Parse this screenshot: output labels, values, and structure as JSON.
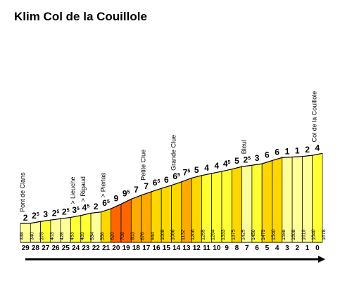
{
  "title": "Klim Col de la Couillole",
  "colors": {
    "lt3": "#ffff99",
    "lt5": "#ffff33",
    "lt7": "#ffd700",
    "lt9": "#ffaa00",
    "ge9": "#ff6600",
    "stroke": "#000000",
    "arrow": "#000000"
  },
  "chart_data": {
    "type": "area",
    "title": "Klim Col de la Couillole",
    "x_axis": {
      "label": "",
      "direction": "descending",
      "ticks": [
        29,
        28,
        27,
        26,
        25,
        24,
        23,
        22,
        21,
        20,
        19,
        18,
        17,
        16,
        15,
        14,
        13,
        12,
        11,
        10,
        9,
        8,
        7,
        6,
        5,
        4,
        3,
        2,
        1,
        0
      ]
    },
    "segments": [
      {
        "km_from": 29,
        "km_to": 28,
        "elevation_start": 338,
        "grade": "2"
      },
      {
        "km_from": 28,
        "km_to": 27,
        "elevation_start": 340,
        "grade": "2.5"
      },
      {
        "km_from": 27,
        "km_to": 26,
        "elevation_start": 375,
        "grade": "3"
      },
      {
        "km_from": 26,
        "km_to": 25,
        "elevation_start": 403,
        "grade": "2.5"
      },
      {
        "km_from": 25,
        "km_to": 24,
        "elevation_start": 428,
        "grade": "2.5"
      },
      {
        "km_from": 24,
        "km_to": 23,
        "elevation_start": 453,
        "grade": "3.5"
      },
      {
        "km_from": 23,
        "km_to": 22,
        "elevation_start": 489,
        "grade": "4.5"
      },
      {
        "km_from": 22,
        "km_to": 21,
        "elevation_start": 534,
        "grade": "2"
      },
      {
        "km_from": 21,
        "km_to": 20,
        "elevation_start": 556,
        "grade": "6.5"
      },
      {
        "km_from": 20,
        "km_to": 19,
        "elevation_start": 620,
        "grade": "9"
      },
      {
        "km_from": 19,
        "km_to": 18,
        "elevation_start": 708,
        "grade": "9.5"
      },
      {
        "km_from": 18,
        "km_to": 17,
        "elevation_start": 803,
        "grade": "7"
      },
      {
        "km_from": 17,
        "km_to": 16,
        "elevation_start": 876,
        "grade": "7"
      },
      {
        "km_from": 16,
        "km_to": 15,
        "elevation_start": 944,
        "grade": "6.5"
      },
      {
        "km_from": 15,
        "km_to": 14,
        "elevation_start": 1008,
        "grade": "6"
      },
      {
        "km_from": 14,
        "km_to": 13,
        "elevation_start": 1066,
        "grade": "6.5"
      },
      {
        "km_from": 13,
        "km_to": 12,
        "elevation_start": 1132,
        "grade": "7.5"
      },
      {
        "km_from": 12,
        "km_to": 11,
        "elevation_start": 1206,
        "grade": "5"
      },
      {
        "km_from": 11,
        "km_to": 10,
        "elevation_start": 1255,
        "grade": "4"
      },
      {
        "km_from": 10,
        "km_to": 9,
        "elevation_start": 1294,
        "grade": "4"
      },
      {
        "km_from": 9,
        "km_to": 8,
        "elevation_start": 1333,
        "grade": "4.5"
      },
      {
        "km_from": 8,
        "km_to": 7,
        "elevation_start": 1375,
        "grade": "5"
      },
      {
        "km_from": 7,
        "km_to": 6,
        "elevation_start": 1425,
        "grade": "2.5"
      },
      {
        "km_from": 6,
        "km_to": 5,
        "elevation_start": 1450,
        "grade": "3"
      },
      {
        "km_from": 5,
        "km_to": 4,
        "elevation_start": 1479,
        "grade": "6"
      },
      {
        "km_from": 4,
        "km_to": 3,
        "elevation_start": 1540,
        "grade": "6"
      },
      {
        "km_from": 3,
        "km_to": 2,
        "elevation_start": 1598,
        "grade": "1"
      },
      {
        "km_from": 2,
        "km_to": 1,
        "elevation_start": 1608,
        "grade": "1"
      },
      {
        "km_from": 1,
        "km_to": 0,
        "elevation_start": 1619,
        "grade": "2"
      },
      {
        "km_from": 0,
        "km_to": -1,
        "elevation_start": 1640,
        "grade": "4"
      }
    ],
    "summit_elevation": 1678,
    "places": [
      {
        "name": "Pont de Clans",
        "km": 29
      },
      {
        "name": "> Lieuche",
        "km": 24
      },
      {
        "name": "> Rigaud",
        "km": 23
      },
      {
        "name": "> Pierlas",
        "km": 21
      },
      {
        "name": "Petite Clue",
        "km": 17
      },
      {
        "name": "Grande Clue",
        "km": 14
      },
      {
        "name": "Bleul",
        "km": 7
      },
      {
        "name": "Col de la Couillole",
        "km": 0
      }
    ]
  }
}
